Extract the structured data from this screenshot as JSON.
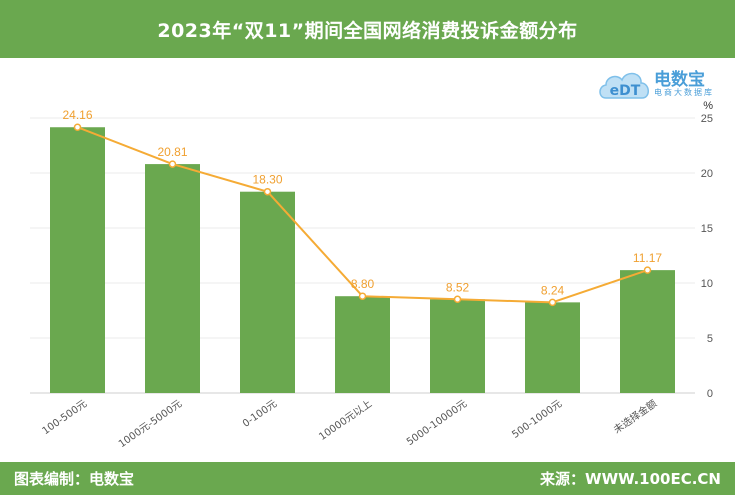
{
  "title": "2023年“双11”期间全国网络消费投诉金额分布",
  "footer": {
    "left": "图表编制：电数宝",
    "right": "来源：WWW.100EC.CN"
  },
  "logo": {
    "name": "电数宝",
    "subtitle": "电商大数据库",
    "mark": "eDT"
  },
  "colors": {
    "header": "#6aa84f",
    "bar": "#6aa84f",
    "line": "#f5ab35",
    "label": "#f0a030",
    "axis_text": "#555555",
    "grid": "#ebebeb"
  },
  "chart_data": {
    "type": "bar",
    "categories": [
      "100-500元",
      "1000元-5000元",
      "0-100元",
      "10000元以上",
      "5000-10000元",
      "500-1000元",
      "未选择金额"
    ],
    "values": [
      24.16,
      20.81,
      18.3,
      8.8,
      8.52,
      8.24,
      11.17
    ],
    "value_labels": [
      "24.16",
      "20.81",
      "18.30",
      "8.80",
      "8.52",
      "8.24",
      "11.17"
    ],
    "overlay_line": true,
    "y_unit": "%",
    "yticks": [
      "0",
      "5",
      "10",
      "15",
      "20",
      "25"
    ],
    "ylim": [
      0,
      25
    ],
    "y_axis_side": "right",
    "grid": true
  }
}
